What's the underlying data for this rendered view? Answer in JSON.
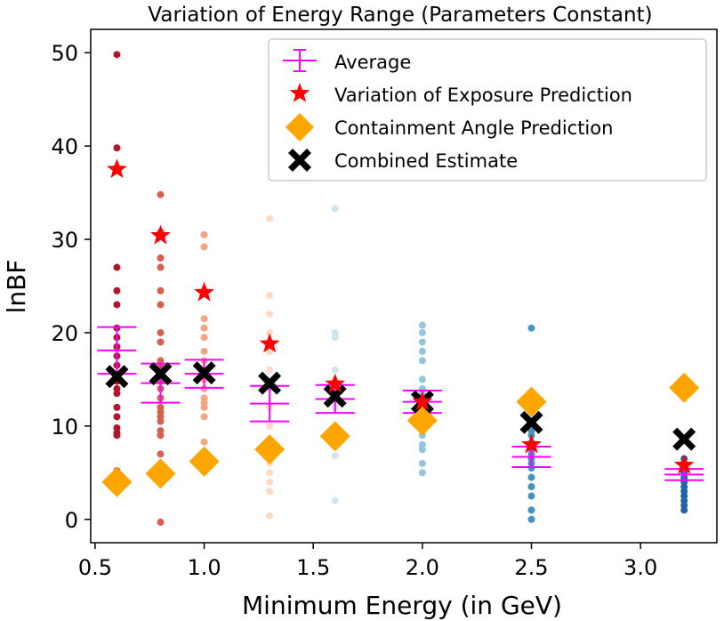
{
  "chart_data": {
    "type": "scatter",
    "title": "Variation of Energy Range (Parameters Constant)",
    "xlabel": "Minimum Energy (in GeV)",
    "ylabel": "lnBF",
    "xlim": [
      0.48,
      3.35
    ],
    "ylim": [
      -2.5,
      52.5
    ],
    "xticks": [
      0.5,
      1.0,
      1.5,
      2.0,
      2.5,
      3.0
    ],
    "xtick_labels": [
      "0.5",
      "1.0",
      "1.5",
      "2.0",
      "2.5",
      "3.0"
    ],
    "yticks": [
      0,
      10,
      20,
      30,
      40,
      50
    ],
    "ytick_labels": [
      "0",
      "10",
      "20",
      "30",
      "40",
      "50"
    ],
    "legend_position": "top-right",
    "legend": [
      {
        "key": "average",
        "label": "Average"
      },
      {
        "key": "exposure",
        "label": "Variation of Exposure Prediction"
      },
      {
        "key": "containment",
        "label": "Containment Angle Prediction"
      },
      {
        "key": "combined",
        "label": "Combined Estimate"
      }
    ],
    "samples": [
      {
        "x": 0.6,
        "color": "#b2182b",
        "values": [
          49.8,
          39.8,
          37.5,
          27.0,
          24.5,
          23.0,
          20.5,
          19.5,
          18.5,
          17.5,
          16.5,
          15.5,
          14.8,
          14.0,
          13.5,
          12.0,
          11.0,
          9.8,
          9.3,
          9.0,
          5.2
        ]
      },
      {
        "x": 0.8,
        "color": "#d6604d",
        "values": [
          34.8,
          30.8,
          28.0,
          27.0,
          24.5,
          23.0,
          20.0,
          19.0,
          17.0,
          16.5,
          15.5,
          14.8,
          14.0,
          13.0,
          12.0,
          11.5,
          11.0,
          10.5,
          9.5,
          9.0,
          7.0,
          5.5,
          -0.3
        ]
      },
      {
        "x": 1.0,
        "color": "#f4a582",
        "values": [
          30.5,
          29.2,
          24.5,
          21.5,
          20.5,
          19.5,
          18.0,
          17.0,
          16.0,
          15.0,
          14.0,
          13.0,
          12.5,
          12.0,
          11.0,
          8.3
        ]
      },
      {
        "x": 1.3,
        "color": "#fddbc7",
        "values": [
          32.2,
          24.0,
          22.0,
          20.0,
          18.0,
          16.0,
          14.0,
          12.0,
          10.0,
          8.0,
          6.0,
          5.0,
          4.0,
          3.0,
          0.4
        ]
      },
      {
        "x": 1.6,
        "color": "#d1e5f0",
        "values": [
          33.3,
          20.0,
          19.5,
          16.0,
          15.0,
          14.5,
          14.0,
          13.5,
          13.0,
          12.5,
          12.0,
          9.0,
          8.0,
          6.8,
          2.0
        ]
      },
      {
        "x": 2.0,
        "color": "#92c5de",
        "values": [
          20.8,
          20.0,
          19.0,
          18.0,
          17.0,
          15.0,
          14.0,
          13.5,
          13.0,
          12.5,
          12.0,
          11.5,
          11.0,
          10.0,
          9.0,
          8.0,
          7.5,
          6.0,
          5.0
        ]
      },
      {
        "x": 2.5,
        "color": "#4393c3",
        "values": [
          20.5,
          9.5,
          9.0,
          8.0,
          7.5,
          7.0,
          6.5,
          6.0,
          5.5,
          4.5,
          3.5,
          2.5,
          1.0,
          0.0
        ]
      },
      {
        "x": 3.2,
        "color": "#2166ac",
        "values": [
          6.5,
          6.0,
          5.5,
          5.0,
          4.5,
          4.2,
          4.0,
          3.5,
          3.0,
          2.5,
          2.0,
          1.5,
          1.0
        ]
      }
    ],
    "average": {
      "color": "#ff00ff",
      "points": [
        {
          "x": 0.6,
          "y": 18.1,
          "err": 2.5
        },
        {
          "x": 0.8,
          "y": 14.6,
          "err": 2.1
        },
        {
          "x": 1.0,
          "y": 15.6,
          "err": 1.5
        },
        {
          "x": 1.3,
          "y": 12.4,
          "err": 1.9
        },
        {
          "x": 1.6,
          "y": 12.9,
          "err": 1.5
        },
        {
          "x": 2.0,
          "y": 12.6,
          "err": 1.2
        },
        {
          "x": 2.5,
          "y": 6.7,
          "err": 1.1
        },
        {
          "x": 3.2,
          "y": 4.8,
          "err": 0.6
        }
      ]
    },
    "exposure": {
      "color": "#ff0000",
      "points": [
        {
          "x": 0.6,
          "y": 37.5
        },
        {
          "x": 0.8,
          "y": 30.4
        },
        {
          "x": 1.0,
          "y": 24.3
        },
        {
          "x": 1.3,
          "y": 18.8
        },
        {
          "x": 1.6,
          "y": 14.5
        },
        {
          "x": 2.0,
          "y": 12.6
        },
        {
          "x": 2.5,
          "y": 8.0
        },
        {
          "x": 3.2,
          "y": 5.8
        }
      ]
    },
    "containment": {
      "color": "#ffa500",
      "points": [
        {
          "x": 0.6,
          "y": 4.0
        },
        {
          "x": 0.8,
          "y": 4.9
        },
        {
          "x": 1.0,
          "y": 6.2
        },
        {
          "x": 1.3,
          "y": 7.5
        },
        {
          "x": 1.6,
          "y": 8.9
        },
        {
          "x": 2.0,
          "y": 10.6
        },
        {
          "x": 2.5,
          "y": 12.6
        },
        {
          "x": 3.2,
          "y": 14.1
        }
      ]
    },
    "combined": {
      "color": "#000000",
      "points": [
        {
          "x": 0.6,
          "y": 15.3
        },
        {
          "x": 0.8,
          "y": 15.6
        },
        {
          "x": 1.0,
          "y": 15.7
        },
        {
          "x": 1.3,
          "y": 14.6
        },
        {
          "x": 1.6,
          "y": 13.2
        },
        {
          "x": 2.0,
          "y": 12.6
        },
        {
          "x": 2.5,
          "y": 10.4
        },
        {
          "x": 3.2,
          "y": 8.6
        }
      ]
    }
  }
}
